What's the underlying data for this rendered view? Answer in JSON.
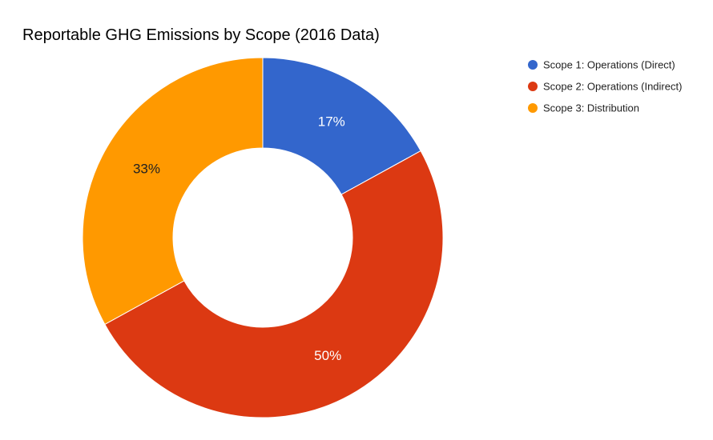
{
  "chart_data": {
    "type": "pie",
    "donut": true,
    "title": "Reportable GHG Emissions by Scope (2016 Data)",
    "legend_position": "top-right",
    "slices": [
      {
        "label": "Scope 1: Operations (Direct)",
        "value": 17,
        "display": "17%",
        "color": "#3366cc",
        "label_color": "#ffffff"
      },
      {
        "label": "Scope 2: Operations (Indirect)",
        "value": 50,
        "display": "50%",
        "color": "#dc3912",
        "label_color": "#ffffff"
      },
      {
        "label": "Scope 3: Distribution",
        "value": 33,
        "display": "33%",
        "color": "#ff9900",
        "label_color": "#222222"
      }
    ]
  }
}
